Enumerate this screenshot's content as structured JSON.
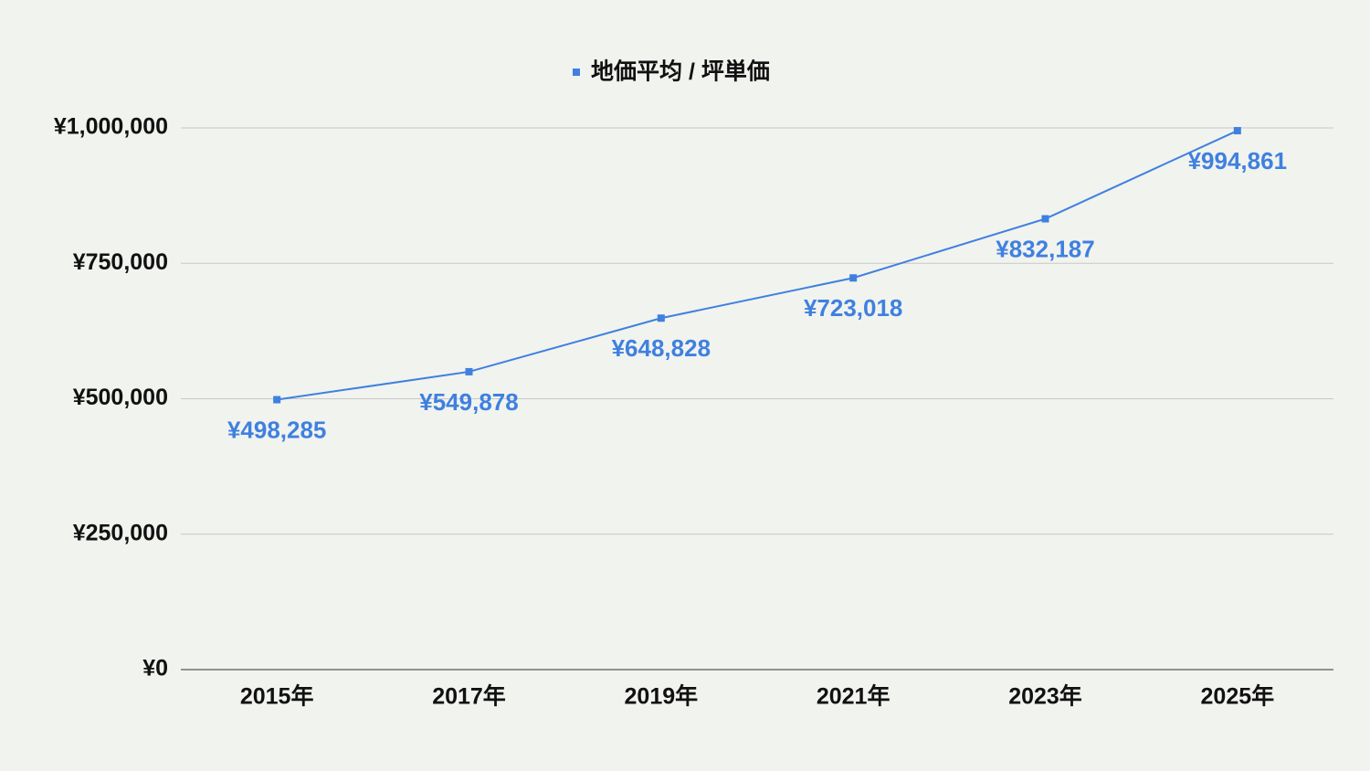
{
  "chart_data": {
    "type": "line",
    "categories": [
      "2015年",
      "2017年",
      "2019年",
      "2021年",
      "2023年",
      "2025年"
    ],
    "series": [
      {
        "name": "地価平均 / 坪単価",
        "color": "#3f80e0",
        "values": [
          498285,
          549878,
          648828,
          723018,
          832187,
          994861
        ],
        "value_labels": [
          "¥498,285",
          "¥549,878",
          "¥648,828",
          "¥723,018",
          "¥832,187",
          "¥994,861"
        ]
      }
    ],
    "ylim": [
      0,
      1000000
    ],
    "yticks": [
      {
        "value": 0,
        "label": "¥0"
      },
      {
        "value": 250000,
        "label": "¥250,000"
      },
      {
        "value": 500000,
        "label": "¥500,000"
      },
      {
        "value": 750000,
        "label": "¥750,000"
      },
      {
        "value": 1000000,
        "label": "¥1,000,000"
      }
    ],
    "grid": true,
    "legend": "top"
  }
}
